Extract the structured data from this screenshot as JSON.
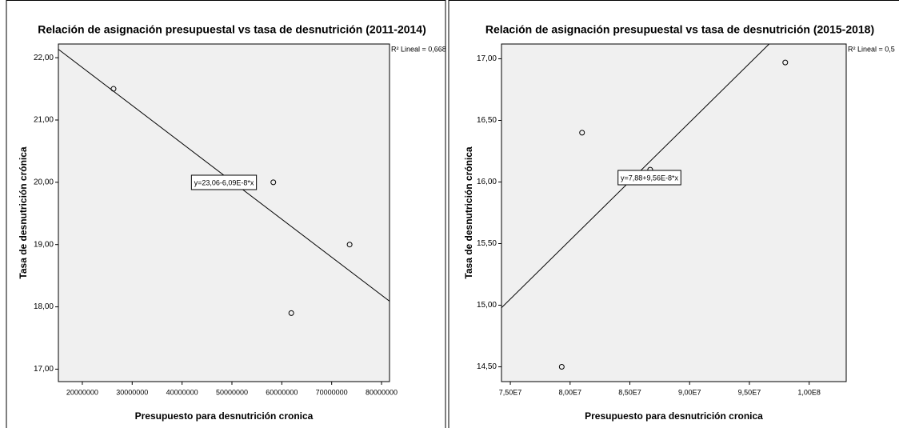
{
  "chart_data": [
    {
      "type": "scatter",
      "title": "Relación de asignación presupuestal vs tasa de desnutrición (2011-2014)",
      "x_label": "Presupuesto para desnutrición cronica",
      "y_label": "Tasa de desnutrición crónica",
      "r2_label": "R² Lineal = 0,668",
      "equation_label": "y=23,06-6,09E-8*x",
      "trendline": {
        "intercept": 23.06,
        "slope": -6.09e-08
      },
      "color": "#000000",
      "x": [
        26260000,
        58300000,
        61900000,
        73600000
      ],
      "values": [
        21.5,
        20.0,
        17.9,
        19.0
      ],
      "xlim": [
        15200000,
        81600000
      ],
      "xticks": [
        20000000,
        30000000,
        40000000,
        50000000,
        60000000,
        70000000,
        80000000
      ],
      "ylim": [
        16.8,
        22.22
      ],
      "yticks": [
        {
          "value": 17,
          "label": "17,00"
        },
        {
          "value": 18,
          "label": "18,00"
        },
        {
          "value": 19,
          "label": "19,00"
        },
        {
          "value": 20,
          "label": "20,00"
        },
        {
          "value": 21,
          "label": "21,00"
        },
        {
          "value": 22,
          "label": "22,00"
        }
      ]
    },
    {
      "type": "scatter",
      "title": "Relación de asignación presupuestal vs tasa de desnutrición (2015-2018)",
      "x_label": "Presupuesto para desnutrición cronica",
      "y_label": "Tasa de desnutrición crónica",
      "r2_label": "R² Lineal = 0,5",
      "equation_label": "y=7,88+9,56E-8*x",
      "trendline": {
        "intercept": 7.88,
        "slope": 9.56e-08
      },
      "color": "#000000",
      "x": [
        79300000,
        81000000,
        86700000,
        98000000
      ],
      "values": [
        14.5,
        16.4,
        16.1,
        16.97
      ],
      "xlim": [
        74260000,
        103100000
      ],
      "xticks": [
        {
          "value": 75000000,
          "label": "7,50E7"
        },
        {
          "value": 80000000,
          "label": "8,00E7"
        },
        {
          "value": 85000000,
          "label": "8,50E7"
        },
        {
          "value": 90000000,
          "label": "9,00E7"
        },
        {
          "value": 95000000,
          "label": "9,50E7"
        },
        {
          "value": 100000000,
          "label": "1,00E8"
        }
      ],
      "ylim": [
        14.38,
        17.12
      ],
      "yticks": [
        {
          "value": 14.5,
          "label": "14,50"
        },
        {
          "value": 15,
          "label": "15,00"
        },
        {
          "value": 15.5,
          "label": "15,50"
        },
        {
          "value": 16,
          "label": "16,00"
        },
        {
          "value": 16.5,
          "label": "16,50"
        },
        {
          "value": 17,
          "label": "17,00"
        }
      ]
    }
  ]
}
